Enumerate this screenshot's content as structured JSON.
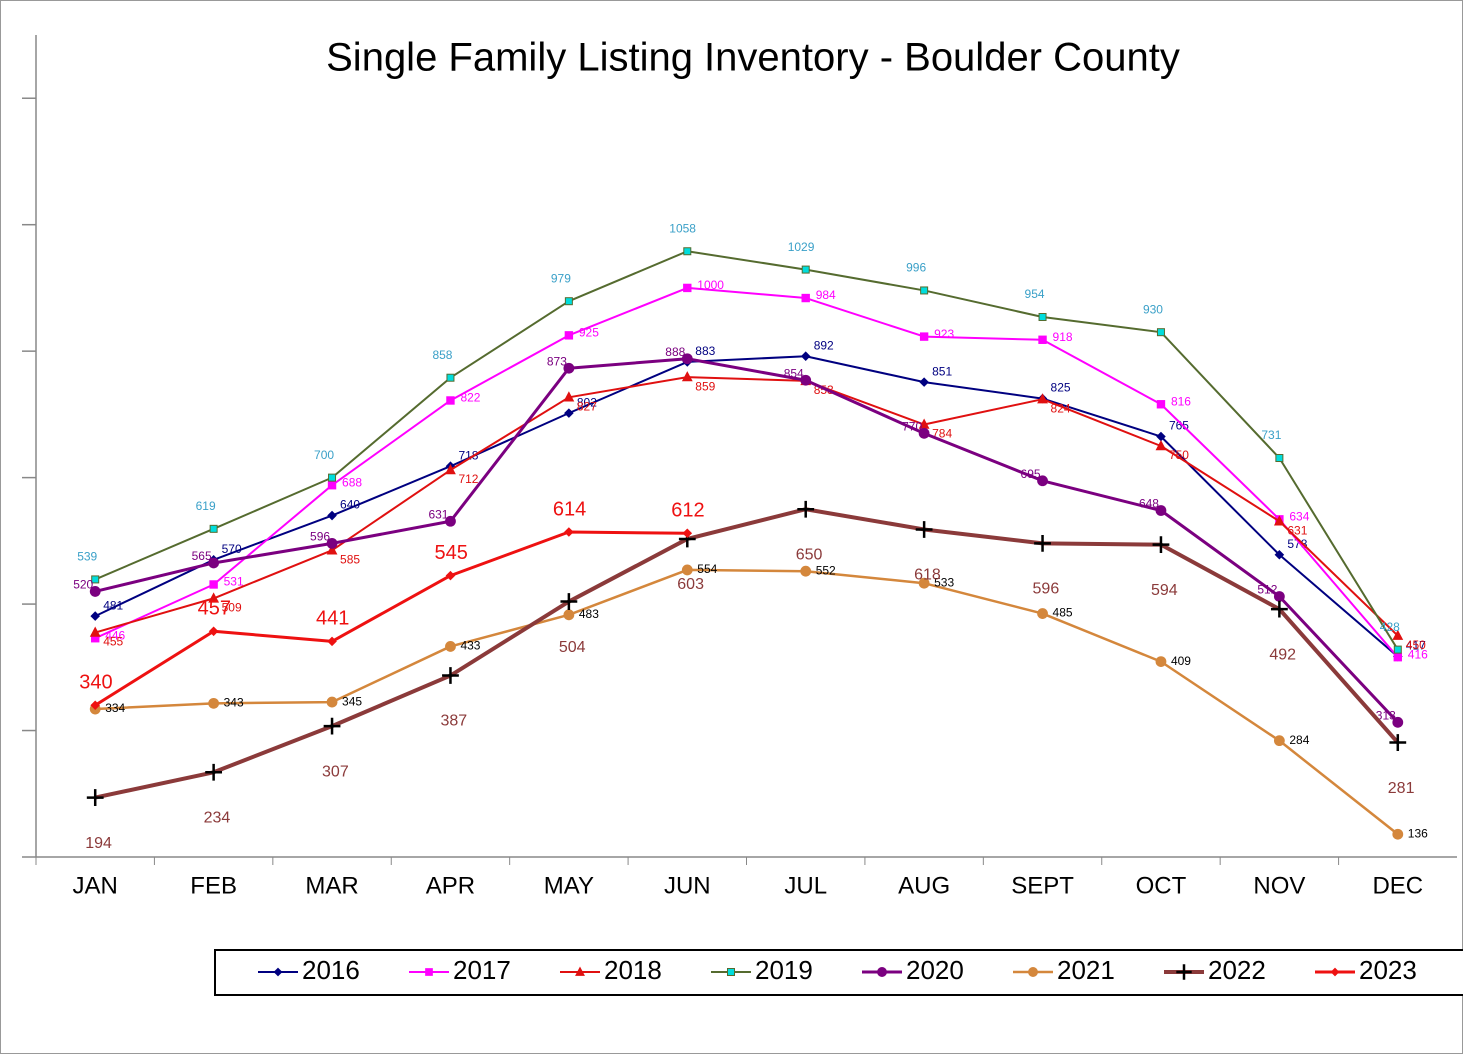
{
  "chart_data": {
    "type": "line",
    "title": "Single Family Listing Inventory - Boulder County",
    "categories": [
      "JAN",
      "FEB",
      "MAR",
      "APR",
      "MAY",
      "JUN",
      "JUL",
      "AUG",
      "SEPT",
      "OCT",
      "NOV",
      "DEC"
    ],
    "ylim": [
      100,
      1400
    ],
    "yticks": [
      100,
      300,
      500,
      700,
      900,
      1100,
      1300
    ],
    "series": [
      {
        "name": "2016",
        "color": "#000080",
        "marker": "diamond",
        "values": [
          481,
          570,
          640,
          718,
          802,
          883,
          892,
          851,
          825,
          765,
          578,
          417
        ]
      },
      {
        "name": "2017",
        "color": "#ff00ff",
        "marker": "square",
        "values": [
          446,
          531,
          688,
          822,
          925,
          1000,
          984,
          923,
          918,
          816,
          634,
          416
        ]
      },
      {
        "name": "2018",
        "color": "#e01010",
        "marker": "triangle",
        "values": [
          455,
          509,
          585,
          712,
          827,
          859,
          853,
          784,
          824,
          750,
          631,
          450
        ]
      },
      {
        "name": "2019",
        "color": "#556b2f",
        "marker": "square-cyan",
        "values": [
          539,
          619,
          700,
          858,
          979,
          1058,
          1029,
          996,
          954,
          930,
          731,
          428
        ]
      },
      {
        "name": "2020",
        "color": "#7b0080",
        "marker": "circle",
        "values": [
          520,
          565,
          596,
          631,
          873,
          888,
          854,
          770,
          695,
          648,
          512,
          313
        ]
      },
      {
        "name": "2021",
        "color": "#d4873c",
        "marker": "circle",
        "values": [
          334,
          343,
          345,
          433,
          483,
          554,
          552,
          533,
          485,
          409,
          284,
          136
        ]
      },
      {
        "name": "2022",
        "color": "#8b3a3a",
        "marker": "plus",
        "values": [
          194,
          234,
          307,
          387,
          504,
          603,
          650,
          618,
          596,
          594,
          492,
          281
        ]
      },
      {
        "name": "2023",
        "color": "#ee1111",
        "marker": "diamond",
        "values": [
          340,
          457,
          441,
          545,
          614,
          612,
          null,
          null,
          null,
          null,
          null,
          null
        ]
      }
    ]
  }
}
